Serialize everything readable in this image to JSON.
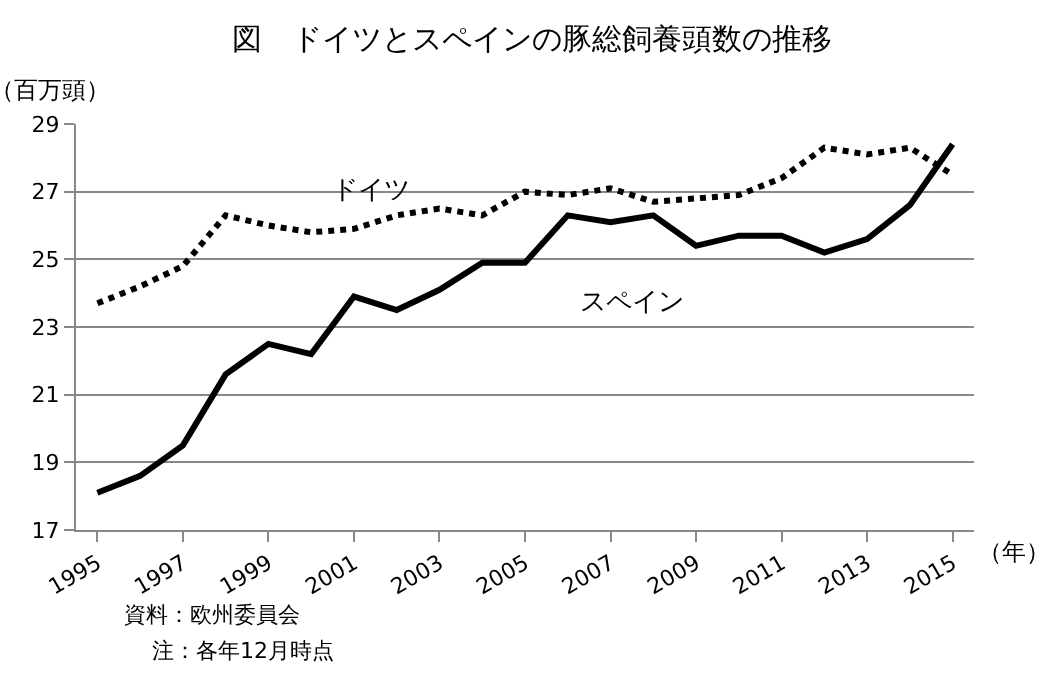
{
  "chart_data": {
    "type": "line",
    "title": "図　ドイツとスペインの豚総飼養頭数の推移",
    "ylabel": "（百万頭）",
    "xlabel": "（年）",
    "x": [
      1995,
      1996,
      1997,
      1998,
      1999,
      2000,
      2001,
      2002,
      2003,
      2004,
      2005,
      2006,
      2007,
      2008,
      2009,
      2010,
      2011,
      2012,
      2013,
      2014,
      2015
    ],
    "series": [
      {
        "name": "ドイツ",
        "color": "#000000",
        "line_style": "dotted",
        "values": [
          23.7,
          24.2,
          24.8,
          26.3,
          26.0,
          25.8,
          25.9,
          26.3,
          26.5,
          26.3,
          27.0,
          26.9,
          27.1,
          26.7,
          26.8,
          26.9,
          27.4,
          28.3,
          28.1,
          28.3,
          27.5
        ]
      },
      {
        "name": "スペイン",
        "color": "#000000",
        "line_style": "solid",
        "values": [
          18.1,
          18.6,
          19.5,
          21.6,
          22.5,
          22.2,
          23.9,
          23.5,
          24.1,
          24.9,
          24.9,
          26.3,
          26.1,
          26.3,
          25.4,
          25.7,
          25.7,
          25.2,
          25.6,
          26.6,
          28.4
        ]
      }
    ],
    "xlim": [
      1994.5,
      2015.5
    ],
    "xticks": [
      1995,
      1997,
      1999,
      2001,
      2003,
      2005,
      2007,
      2009,
      2011,
      2013,
      2015
    ],
    "ylim": [
      17,
      29
    ],
    "yticks": [
      17,
      19,
      21,
      23,
      25,
      27,
      29
    ],
    "grid": "y",
    "legend": false,
    "marker": "none",
    "annotations": [
      "資料：欧州委員会",
      "注：各年12月時点"
    ]
  }
}
